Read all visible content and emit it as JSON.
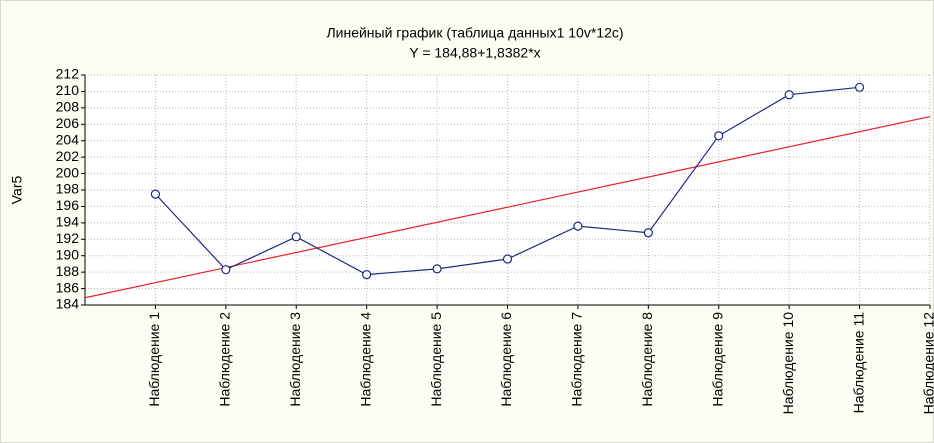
{
  "chart_data": {
    "type": "line",
    "title": "Линейный график (таблица данных1 10v*12c)",
    "subtitle": "Y = 184,88+1,8382*x",
    "ylabel": "Var5",
    "categories": [
      "Наблюдение 1",
      "Наблюдение 2",
      "Наблюдение 3",
      "Наблюдение 4",
      "Наблюдение 5",
      "Наблюдение 6",
      "Наблюдение 7",
      "Наблюдение 8",
      "Наблюдение 9",
      "Наблюдение 10",
      "Наблюдение 11",
      "Наблюдение 12"
    ],
    "series": [
      {
        "color": "#1f2a80",
        "values": [
          197.5,
          188.3,
          192.3,
          187.7,
          188.4,
          189.6,
          193.6,
          192.8,
          204.6,
          209.6,
          210.5,
          null
        ]
      }
    ],
    "fit": {
      "intercept": 184.88,
      "slope": 1.8382,
      "color": "#e8202a"
    },
    "ylim": [
      184,
      212
    ],
    "yticks": [
      184,
      186,
      188,
      190,
      192,
      194,
      196,
      198,
      200,
      202,
      204,
      206,
      208,
      210,
      212
    ],
    "grid": true
  }
}
